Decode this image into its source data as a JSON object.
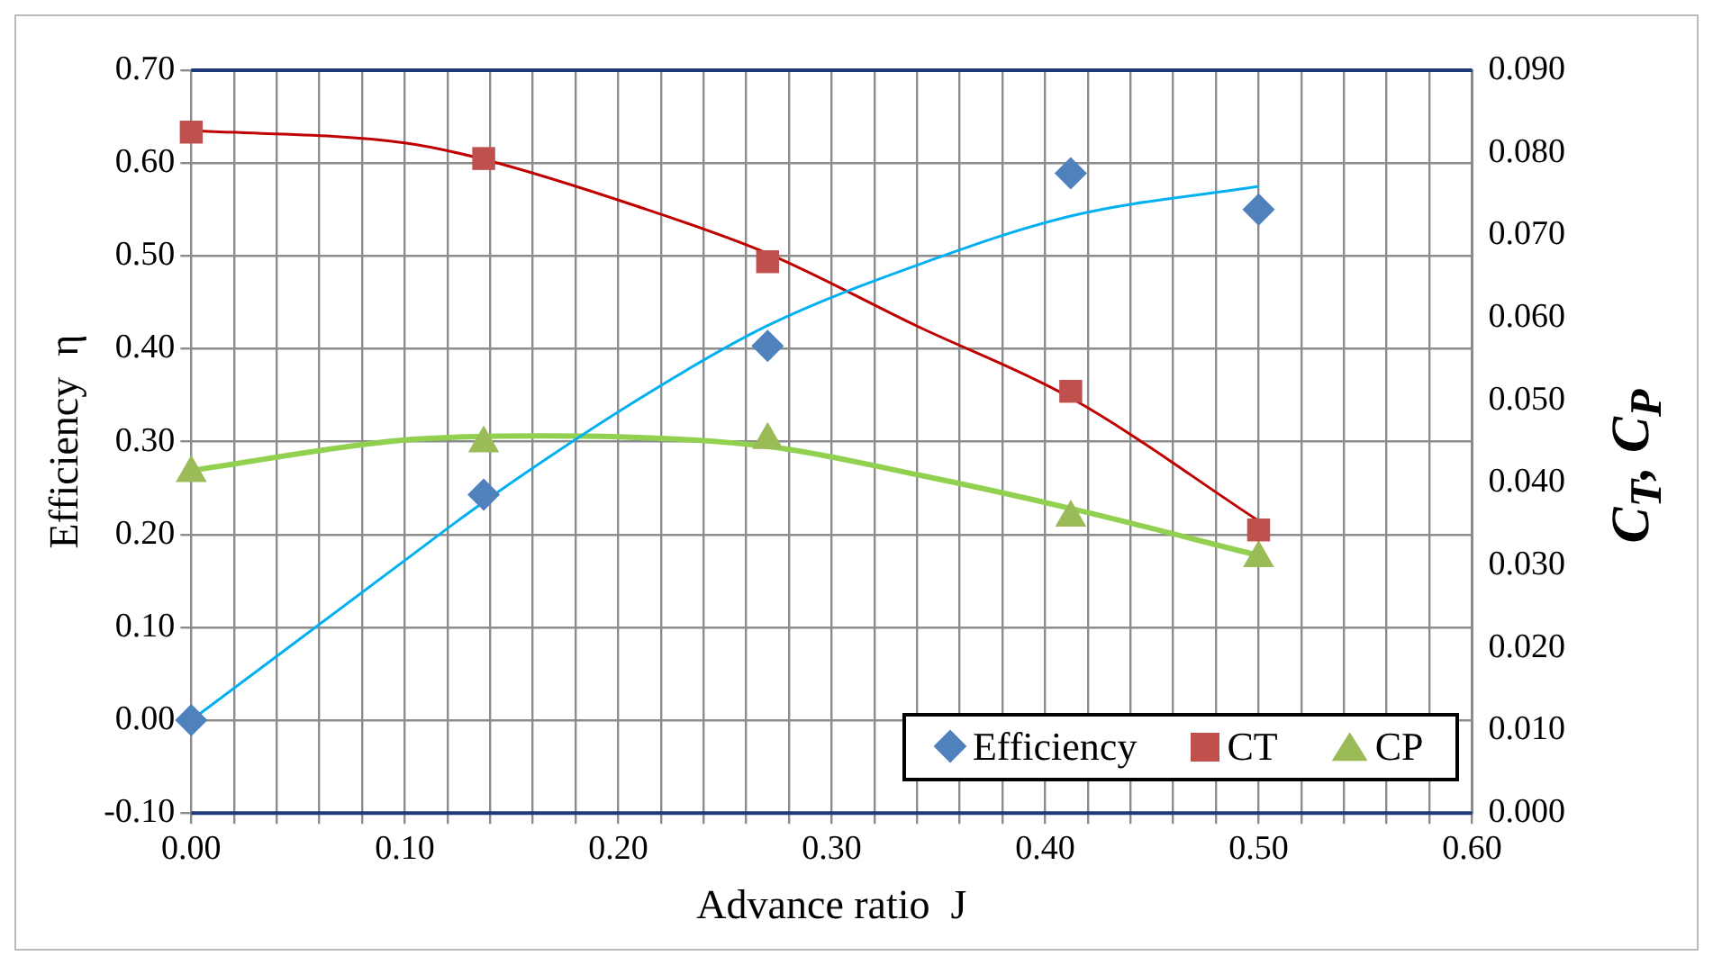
{
  "chart_data": {
    "type": "scatter",
    "xlabel": "Advance ratio  J",
    "ylabel": "Efficiency  η",
    "y2label": "C$_{T}$, C$_{P}$",
    "xlim": [
      0,
      0.6
    ],
    "xticks": [
      {
        "value": 0,
        "label": "0.00"
      },
      {
        "value": 0.02,
        "label": null
      },
      {
        "value": 0.04,
        "label": null
      },
      {
        "value": 0.06,
        "label": null
      },
      {
        "value": 0.08,
        "label": null
      },
      {
        "value": 0.1,
        "label": "0.10"
      },
      {
        "value": 0.12,
        "label": null
      },
      {
        "value": 0.14,
        "label": null
      },
      {
        "value": 0.16,
        "label": null
      },
      {
        "value": 0.18,
        "label": null
      },
      {
        "value": 0.2,
        "label": "0.20"
      },
      {
        "value": 0.22,
        "label": null
      },
      {
        "value": 0.24,
        "label": null
      },
      {
        "value": 0.26,
        "label": null
      },
      {
        "value": 0.28,
        "label": null
      },
      {
        "value": 0.3,
        "label": "0.30"
      },
      {
        "value": 0.32,
        "label": null
      },
      {
        "value": 0.34,
        "label": null
      },
      {
        "value": 0.36,
        "label": null
      },
      {
        "value": 0.38,
        "label": null
      },
      {
        "value": 0.4,
        "label": "0.40"
      },
      {
        "value": 0.42,
        "label": null
      },
      {
        "value": 0.44,
        "label": null
      },
      {
        "value": 0.46,
        "label": null
      },
      {
        "value": 0.48,
        "label": null
      },
      {
        "value": 0.5,
        "label": "0.50"
      },
      {
        "value": 0.52,
        "label": null
      },
      {
        "value": 0.54,
        "label": null
      },
      {
        "value": 0.56,
        "label": null
      },
      {
        "value": 0.58,
        "label": null
      },
      {
        "value": 0.6,
        "label": "0.60"
      }
    ],
    "ylim": [
      -0.1,
      0.7
    ],
    "yticks": [
      {
        "value": -0.1,
        "label": "-0.10"
      },
      {
        "value": 0,
        "label": "0.00"
      },
      {
        "value": 0.1,
        "label": "0.10"
      },
      {
        "value": 0.2,
        "label": "0.20"
      },
      {
        "value": 0.3,
        "label": "0.30"
      },
      {
        "value": 0.4,
        "label": "0.40"
      },
      {
        "value": 0.5,
        "label": "0.50"
      },
      {
        "value": 0.6,
        "label": "0.60"
      },
      {
        "value": 0.7,
        "label": "0.70"
      }
    ],
    "y2lim": [
      0,
      0.09
    ],
    "y2ticks": [
      {
        "value": 0,
        "label": "0.000"
      },
      {
        "value": 0.01,
        "label": "0.010"
      },
      {
        "value": 0.02,
        "label": "0.020"
      },
      {
        "value": 0.03,
        "label": "0.030"
      },
      {
        "value": 0.04,
        "label": "0.040"
      },
      {
        "value": 0.05,
        "label": "0.050"
      },
      {
        "value": 0.06,
        "label": "0.060"
      },
      {
        "value": 0.07,
        "label": "0.070"
      },
      {
        "value": 0.08,
        "label": "0.080"
      },
      {
        "value": 0.09,
        "label": "0.090"
      }
    ],
    "grid": true,
    "legend": "bottom right",
    "series": [
      {
        "type": "line",
        "color": "#00b0f0",
        "marker": "none",
        "x": [
          0,
          0.1,
          0.137,
          0.209,
          0.27,
          0.34,
          0.412,
          0.5
        ],
        "values": [
          0,
          0.172,
          0.235,
          0.345,
          0.425,
          0.49,
          0.543,
          0.575
        ]
      },
      {
        "type": "line",
        "color": "#c00000",
        "marker": "none",
        "axis": "y2",
        "x": [
          0,
          0.1,
          0.137,
          0.209,
          0.27,
          0.34,
          0.412,
          0.5
        ],
        "values": [
          0.0827,
          0.0812,
          0.0792,
          0.0735,
          0.0678,
          0.059,
          0.0503,
          0.0354
        ]
      },
      {
        "type": "line",
        "color": "#92d050",
        "marker": "none",
        "axis": "y2",
        "x": [
          0,
          0.1,
          0.165,
          0.27,
          0.34,
          0.412,
          0.5
        ],
        "values": [
          0.0415,
          0.0452,
          0.0457,
          0.0444,
          0.041,
          0.0369,
          0.0312
        ]
      },
      {
        "type": "scatter",
        "name": "Efficiency",
        "color": "#4f81bd",
        "marker": "diamond",
        "x": [
          0,
          0.137,
          0.27,
          0.412,
          0.5
        ],
        "values": [
          0,
          0.243,
          0.403,
          0.589,
          0.55
        ]
      },
      {
        "type": "scatter",
        "name": "CT",
        "color": "#c0504d",
        "marker": "square",
        "axis": "y2",
        "x": [
          0,
          0.137,
          0.27,
          0.412,
          0.5
        ],
        "values": [
          0.0825,
          0.0793,
          0.0668,
          0.0511,
          0.0343
        ]
      },
      {
        "type": "scatter",
        "name": "CP",
        "color": "#9bbb59",
        "marker": "triangle",
        "axis": "y2",
        "x": [
          0,
          0.137,
          0.27,
          0.412,
          0.5
        ],
        "values": [
          0.0412,
          0.0448,
          0.0452,
          0.0358,
          0.0309
        ]
      }
    ]
  }
}
